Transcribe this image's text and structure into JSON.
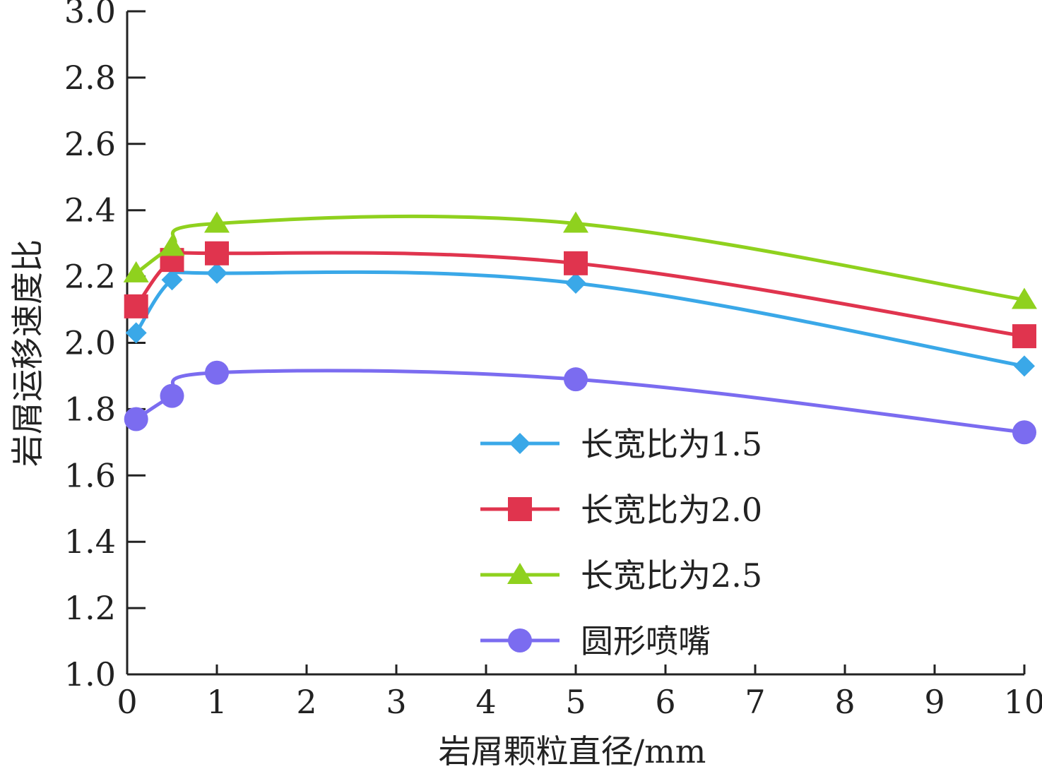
{
  "chart_data": {
    "type": "line",
    "xlabel": "岩屑颗粒直径/mm",
    "ylabel": "岩屑运移速度比",
    "xlim": [
      0,
      10
    ],
    "ylim": [
      1.0,
      3.0
    ],
    "x_ticks": [
      "0",
      "1",
      "2",
      "3",
      "4",
      "5",
      "6",
      "7",
      "8",
      "9",
      "10"
    ],
    "y_ticks": [
      "1.0",
      "1.2",
      "1.4",
      "1.6",
      "1.8",
      "2.0",
      "2.2",
      "2.4",
      "2.6",
      "2.8",
      "3.0"
    ],
    "legend_position": "bottom-right",
    "grid": false,
    "x": [
      0.1,
      0.5,
      1,
      5,
      10
    ],
    "series": [
      {
        "name": "长宽比为1.5",
        "marker": "diamond",
        "color": "#3aa8e8",
        "values": [
          2.03,
          2.19,
          2.21,
          2.18,
          1.93
        ]
      },
      {
        "name": "长宽比为2.0",
        "marker": "square",
        "color": "#e0344e",
        "values": [
          2.11,
          2.25,
          2.27,
          2.24,
          2.02
        ]
      },
      {
        "name": "长宽比为2.5",
        "marker": "triangle",
        "color": "#8fd11e",
        "values": [
          2.21,
          2.29,
          2.36,
          2.36,
          2.13
        ]
      },
      {
        "name": "圆形喷嘴",
        "marker": "circle",
        "color": "#7b6cf0",
        "values": [
          1.77,
          1.84,
          1.91,
          1.89,
          1.73
        ]
      }
    ]
  }
}
